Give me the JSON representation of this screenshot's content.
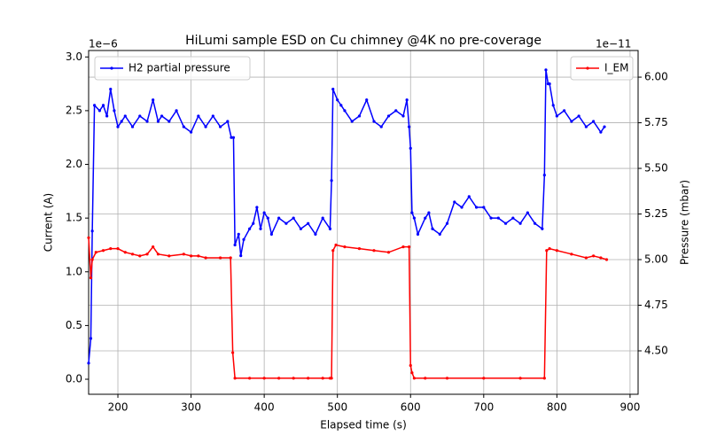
{
  "chart_data": {
    "type": "line",
    "title": "HiLumi sample ESD on Cu chimney @4K no pre-coverage",
    "x_label": "Elapsed time (s)",
    "y_label": "Current (A)",
    "y2_label": "Pressure (mbar)",
    "y_offset_label": "1e−6",
    "y2_offset_label": "1e−11",
    "xlim": [
      160,
      911
    ],
    "ylim": [
      -0.14,
      3.06
    ],
    "y2lim": [
      4.262,
      6.146
    ],
    "xticks": [
      200,
      300,
      400,
      500,
      600,
      700,
      800,
      900
    ],
    "yticks": [
      {
        "value": 0,
        "label": "0.0"
      },
      0.5,
      {
        "value": 1,
        "label": "1.0"
      },
      1.5,
      {
        "value": 2,
        "label": "2.0"
      },
      2.5,
      {
        "value": 3,
        "label": "3.0"
      }
    ],
    "y2ticks": [
      {
        "value": 4.5,
        "label": "4.50"
      },
      4.75,
      {
        "value": 5,
        "label": "5.00"
      },
      5.25,
      {
        "value": 5.5,
        "label": "5.50"
      },
      5.75,
      {
        "value": 6,
        "label": "6.00"
      }
    ],
    "grid": {
      "x": true,
      "y2": true
    },
    "series": [
      {
        "name": "H2 partial pressure",
        "color": "#0000ff",
        "axis": "y",
        "legend": "upper left",
        "x": [
          160,
          163,
          165,
          168,
          175,
          180,
          185,
          190,
          195,
          200,
          205,
          210,
          220,
          230,
          240,
          248,
          255,
          260,
          270,
          280,
          290,
          300,
          310,
          320,
          330,
          340,
          350,
          355,
          358,
          360,
          365,
          368,
          372,
          380,
          385,
          390,
          395,
          400,
          405,
          410,
          420,
          430,
          440,
          450,
          460,
          470,
          480,
          490,
          492,
          494,
          500,
          505,
          510,
          520,
          530,
          540,
          550,
          560,
          570,
          580,
          590,
          595,
          598,
          600,
          602,
          605,
          610,
          620,
          625,
          630,
          640,
          650,
          660,
          670,
          680,
          690,
          700,
          710,
          720,
          730,
          740,
          750,
          760,
          770,
          780,
          783,
          785,
          788,
          790,
          795,
          800,
          810,
          820,
          830,
          840,
          850,
          860,
          865
        ],
        "values": [
          0.15,
          0.38,
          1.38,
          2.55,
          2.5,
          2.55,
          2.45,
          2.7,
          2.5,
          2.35,
          2.4,
          2.45,
          2.35,
          2.45,
          2.4,
          2.6,
          2.4,
          2.45,
          2.4,
          2.5,
          2.35,
          2.3,
          2.45,
          2.35,
          2.45,
          2.35,
          2.4,
          2.25,
          2.25,
          1.25,
          1.35,
          1.15,
          1.3,
          1.4,
          1.45,
          1.6,
          1.4,
          1.55,
          1.5,
          1.35,
          1.5,
          1.45,
          1.5,
          1.4,
          1.45,
          1.35,
          1.5,
          1.4,
          1.85,
          2.7,
          2.6,
          2.55,
          2.5,
          2.4,
          2.45,
          2.6,
          2.4,
          2.35,
          2.45,
          2.5,
          2.45,
          2.6,
          2.35,
          2.15,
          1.55,
          1.5,
          1.35,
          1.5,
          1.55,
          1.4,
          1.35,
          1.45,
          1.65,
          1.6,
          1.7,
          1.6,
          1.6,
          1.5,
          1.5,
          1.45,
          1.5,
          1.45,
          1.55,
          1.45,
          1.4,
          1.9,
          2.88,
          2.75,
          2.75,
          2.55,
          2.45,
          2.5,
          2.4,
          2.45,
          2.35,
          2.4,
          2.3,
          2.35
        ]
      },
      {
        "name": "I_EM",
        "color": "#ff0000",
        "axis": "y2",
        "legend": "upper right",
        "x": [
          160,
          163,
          165,
          170,
          180,
          190,
          200,
          210,
          220,
          230,
          240,
          248,
          255,
          270,
          290,
          300,
          310,
          320,
          340,
          354,
          357,
          360,
          380,
          400,
          420,
          440,
          460,
          480,
          490,
          492,
          494,
          498,
          510,
          530,
          550,
          570,
          590,
          598,
          600,
          602,
          605,
          620,
          650,
          700,
          750,
          783,
          786,
          790,
          800,
          820,
          840,
          850,
          860,
          868
        ],
        "values": [
          5.12,
          4.9,
          5.0,
          5.04,
          5.05,
          5.06,
          5.06,
          5.04,
          5.03,
          5.02,
          5.03,
          5.07,
          5.03,
          5.02,
          5.03,
          5.02,
          5.02,
          5.01,
          5.01,
          5.01,
          4.49,
          4.35,
          4.35,
          4.35,
          4.35,
          4.35,
          4.35,
          4.35,
          4.35,
          4.35,
          5.05,
          5.08,
          5.07,
          5.06,
          5.05,
          5.04,
          5.07,
          5.07,
          4.42,
          4.38,
          4.35,
          4.35,
          4.35,
          4.35,
          4.35,
          4.35,
          5.05,
          5.06,
          5.05,
          5.03,
          5.01,
          5.02,
          5.01,
          5.0
        ]
      }
    ]
  }
}
